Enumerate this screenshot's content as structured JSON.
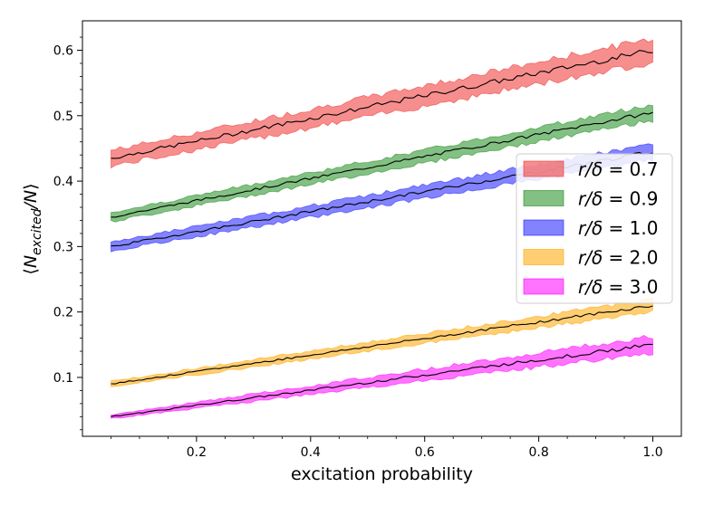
{
  "chart_data": {
    "type": "area",
    "xlabel": "excitation probability",
    "ylabel": "⟨N_excited/N⟩",
    "xlim": [
      0.0,
      1.05
    ],
    "ylim": [
      0.01,
      0.645
    ],
    "xticks": [
      0.2,
      0.4,
      0.6,
      0.8,
      1.0
    ],
    "xtick_labels": [
      "0.2",
      "0.4",
      "0.6",
      "0.8",
      "1.0"
    ],
    "yticks": [
      0.1,
      0.2,
      0.3,
      0.4,
      0.5,
      0.6
    ],
    "ytick_labels": [
      "0.1",
      "0.2",
      "0.3",
      "0.4",
      "0.5",
      "0.6"
    ],
    "grid": false,
    "legend_position": "center-right",
    "x_range": [
      0.05,
      1.0
    ],
    "series": [
      {
        "name": "r/δ = 0.7",
        "label_lhs": "r/δ",
        "label_rhs": "0.7",
        "color": "#f03232",
        "mean": [
          0.435,
          0.6
        ],
        "band_half_width": [
          0.012,
          0.018
        ]
      },
      {
        "name": "r/δ = 0.9",
        "label_lhs": "r/δ",
        "label_rhs": "0.9",
        "color": "#1e8c1e",
        "mean": [
          0.345,
          0.505
        ],
        "band_half_width": [
          0.007,
          0.012
        ]
      },
      {
        "name": "r/δ = 1.0",
        "label_lhs": "r/δ",
        "label_rhs": "1.0",
        "color": "#1e1eff",
        "mean": [
          0.3,
          0.445
        ],
        "band_half_width": [
          0.007,
          0.012
        ]
      },
      {
        "name": "r/δ = 2.0",
        "label_lhs": "r/δ",
        "label_rhs": "2.0",
        "color": "#ffa500",
        "mean": [
          0.09,
          0.21
        ],
        "band_half_width": [
          0.004,
          0.01
        ]
      },
      {
        "name": "r/δ = 3.0",
        "label_lhs": "r/δ",
        "label_rhs": "3.0",
        "color": "#ff00ff",
        "mean": [
          0.04,
          0.15
        ],
        "band_half_width": [
          0.003,
          0.013
        ]
      }
    ]
  }
}
